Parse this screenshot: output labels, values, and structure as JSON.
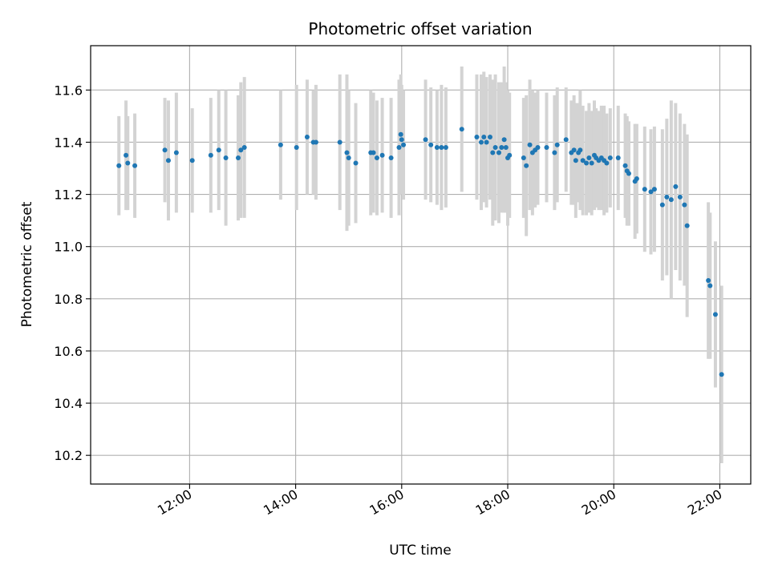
{
  "chart_data": {
    "type": "scatter",
    "title": "Photometric offset variation",
    "xlabel": "UTC time",
    "ylabel": "Photometric offset",
    "x_axis_type": "time",
    "x_ticks": [
      "12:00",
      "14:00",
      "16:00",
      "18:00",
      "20:00",
      "22:00"
    ],
    "xlim": [
      "10:08",
      "22:35"
    ],
    "y_ticks": [
      10.2,
      10.4,
      10.6,
      10.8,
      11.0,
      11.2,
      11.4,
      11.6
    ],
    "ylim": [
      10.09,
      11.77
    ],
    "grid": true,
    "colors": {
      "point": "#1f77b4",
      "errorbar": "#d3d3d3",
      "grid": "#b0b0b0"
    },
    "series": [
      {
        "points": [
          {
            "x": "10:40",
            "y": 11.31,
            "err": 0.19
          },
          {
            "x": "10:48",
            "y": 11.35,
            "err": 0.21
          },
          {
            "x": "10:50",
            "y": 11.32,
            "err": 0.18
          },
          {
            "x": "10:58",
            "y": 11.31,
            "err": 0.2
          },
          {
            "x": "11:32",
            "y": 11.37,
            "err": 0.2
          },
          {
            "x": "11:36",
            "y": 11.33,
            "err": 0.23
          },
          {
            "x": "11:45",
            "y": 11.36,
            "err": 0.23
          },
          {
            "x": "12:03",
            "y": 11.33,
            "err": 0.2
          },
          {
            "x": "12:24",
            "y": 11.35,
            "err": 0.22
          },
          {
            "x": "12:33",
            "y": 11.37,
            "err": 0.23
          },
          {
            "x": "12:41",
            "y": 11.34,
            "err": 0.26
          },
          {
            "x": "12:55",
            "y": 11.34,
            "err": 0.24
          },
          {
            "x": "12:58",
            "y": 11.37,
            "err": 0.26
          },
          {
            "x": "13:02",
            "y": 11.38,
            "err": 0.27
          },
          {
            "x": "13:43",
            "y": 11.39,
            "err": 0.21
          },
          {
            "x": "14:01",
            "y": 11.38,
            "err": 0.24
          },
          {
            "x": "14:13",
            "y": 11.42,
            "err": 0.22
          },
          {
            "x": "14:20",
            "y": 11.4,
            "err": 0.2
          },
          {
            "x": "14:23",
            "y": 11.4,
            "err": 0.22
          },
          {
            "x": "14:50",
            "y": 11.4,
            "err": 0.26
          },
          {
            "x": "14:58",
            "y": 11.36,
            "err": 0.3
          },
          {
            "x": "15:00",
            "y": 11.34,
            "err": 0.26
          },
          {
            "x": "15:08",
            "y": 11.32,
            "err": 0.23
          },
          {
            "x": "15:25",
            "y": 11.36,
            "err": 0.24
          },
          {
            "x": "15:28",
            "y": 11.36,
            "err": 0.23
          },
          {
            "x": "15:32",
            "y": 11.34,
            "err": 0.22
          },
          {
            "x": "15:38",
            "y": 11.35,
            "err": 0.22
          },
          {
            "x": "15:48",
            "y": 11.34,
            "err": 0.23
          },
          {
            "x": "15:57",
            "y": 11.38,
            "err": 0.26
          },
          {
            "x": "15:59",
            "y": 11.43,
            "err": 0.23
          },
          {
            "x": "16:00",
            "y": 11.41,
            "err": 0.21
          },
          {
            "x": "16:02",
            "y": 11.39,
            "err": 0.21
          },
          {
            "x": "16:27",
            "y": 11.41,
            "err": 0.23
          },
          {
            "x": "16:33",
            "y": 11.39,
            "err": 0.22
          },
          {
            "x": "16:40",
            "y": 11.38,
            "err": 0.22
          },
          {
            "x": "16:45",
            "y": 11.38,
            "err": 0.24
          },
          {
            "x": "16:50",
            "y": 11.38,
            "err": 0.23
          },
          {
            "x": "17:08",
            "y": 11.45,
            "err": 0.24
          },
          {
            "x": "17:25",
            "y": 11.42,
            "err": 0.24
          },
          {
            "x": "17:30",
            "y": 11.4,
            "err": 0.26
          },
          {
            "x": "17:33",
            "y": 11.42,
            "err": 0.25
          },
          {
            "x": "17:36",
            "y": 11.4,
            "err": 0.25
          },
          {
            "x": "17:40",
            "y": 11.42,
            "err": 0.24
          },
          {
            "x": "17:43",
            "y": 11.36,
            "err": 0.28
          },
          {
            "x": "17:46",
            "y": 11.38,
            "err": 0.28
          },
          {
            "x": "17:50",
            "y": 11.36,
            "err": 0.27
          },
          {
            "x": "17:53",
            "y": 11.38,
            "err": 0.25
          },
          {
            "x": "17:56",
            "y": 11.41,
            "err": 0.28
          },
          {
            "x": "17:58",
            "y": 11.38,
            "err": 0.25
          },
          {
            "x": "18:00",
            "y": 11.34,
            "err": 0.26
          },
          {
            "x": "18:02",
            "y": 11.35,
            "err": 0.24
          },
          {
            "x": "18:18",
            "y": 11.34,
            "err": 0.23
          },
          {
            "x": "18:21",
            "y": 11.31,
            "err": 0.27
          },
          {
            "x": "18:25",
            "y": 11.39,
            "err": 0.25
          },
          {
            "x": "18:28",
            "y": 11.36,
            "err": 0.24
          },
          {
            "x": "18:31",
            "y": 11.37,
            "err": 0.22
          },
          {
            "x": "18:34",
            "y": 11.38,
            "err": 0.22
          },
          {
            "x": "18:44",
            "y": 11.38,
            "err": 0.21
          },
          {
            "x": "18:53",
            "y": 11.36,
            "err": 0.22
          },
          {
            "x": "18:56",
            "y": 11.39,
            "err": 0.22
          },
          {
            "x": "19:06",
            "y": 11.41,
            "err": 0.2
          },
          {
            "x": "19:12",
            "y": 11.36,
            "err": 0.2
          },
          {
            "x": "19:15",
            "y": 11.37,
            "err": 0.21
          },
          {
            "x": "19:17",
            "y": 11.33,
            "err": 0.22
          },
          {
            "x": "19:20",
            "y": 11.36,
            "err": 0.19
          },
          {
            "x": "19:22",
            "y": 11.37,
            "err": 0.23
          },
          {
            "x": "19:25",
            "y": 11.33,
            "err": 0.21
          },
          {
            "x": "19:29",
            "y": 11.32,
            "err": 0.2
          },
          {
            "x": "19:32",
            "y": 11.34,
            "err": 0.21
          },
          {
            "x": "19:35",
            "y": 11.32,
            "err": 0.2
          },
          {
            "x": "19:38",
            "y": 11.35,
            "err": 0.21
          },
          {
            "x": "19:40",
            "y": 11.34,
            "err": 0.19
          },
          {
            "x": "19:43",
            "y": 11.33,
            "err": 0.19
          },
          {
            "x": "19:46",
            "y": 11.34,
            "err": 0.2
          },
          {
            "x": "19:49",
            "y": 11.33,
            "err": 0.21
          },
          {
            "x": "19:52",
            "y": 11.32,
            "err": 0.19
          },
          {
            "x": "19:56",
            "y": 11.34,
            "err": 0.19
          },
          {
            "x": "20:05",
            "y": 11.34,
            "err": 0.2
          },
          {
            "x": "20:13",
            "y": 11.31,
            "err": 0.2
          },
          {
            "x": "20:15",
            "y": 11.29,
            "err": 0.21
          },
          {
            "x": "20:17",
            "y": 11.28,
            "err": 0.2
          },
          {
            "x": "20:24",
            "y": 11.25,
            "err": 0.22
          },
          {
            "x": "20:26",
            "y": 11.26,
            "err": 0.21
          },
          {
            "x": "20:35",
            "y": 11.22,
            "err": 0.24
          },
          {
            "x": "20:42",
            "y": 11.21,
            "err": 0.24
          },
          {
            "x": "20:46",
            "y": 11.22,
            "err": 0.24
          },
          {
            "x": "20:55",
            "y": 11.16,
            "err": 0.29
          },
          {
            "x": "21:00",
            "y": 11.19,
            "err": 0.3
          },
          {
            "x": "21:05",
            "y": 11.18,
            "err": 0.38
          },
          {
            "x": "21:10",
            "y": 11.23,
            "err": 0.32
          },
          {
            "x": "21:15",
            "y": 11.19,
            "err": 0.32
          },
          {
            "x": "21:20",
            "y": 11.16,
            "err": 0.31
          },
          {
            "x": "21:23",
            "y": 11.08,
            "err": 0.35
          },
          {
            "x": "21:47",
            "y": 10.87,
            "err": 0.3
          },
          {
            "x": "21:49",
            "y": 10.85,
            "err": 0.28
          },
          {
            "x": "21:55",
            "y": 10.74,
            "err": 0.28
          },
          {
            "x": "22:02",
            "y": 10.51,
            "err": 0.34
          }
        ]
      }
    ]
  }
}
